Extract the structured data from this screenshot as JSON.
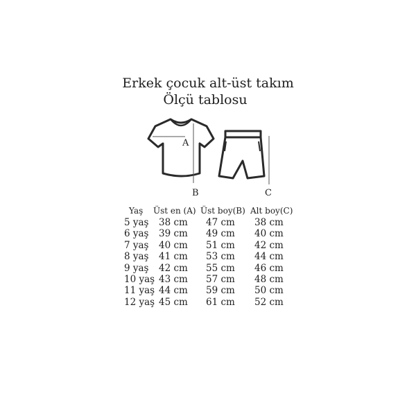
{
  "title_line1": "Erkek çocuk alt-üst takım",
  "title_line2": "Ölçü tablosu",
  "diagram": {
    "label_a": "A",
    "label_b": "B",
    "label_c": "C",
    "icons": [
      "t-shirt-icon",
      "shorts-icon"
    ]
  },
  "table": {
    "headers": [
      "Yaş",
      "Üst en (A)",
      "Üst boy(B)",
      "Alt boy(C)"
    ],
    "rows": [
      [
        "5 yaş",
        "38 cm",
        "47 cm",
        "38 cm"
      ],
      [
        "6 yaş",
        "39 cm",
        "49 cm",
        "40 cm"
      ],
      [
        "7 yaş",
        "40 cm",
        "51 cm",
        "42 cm"
      ],
      [
        "8 yaş",
        "41 cm",
        "53 cm",
        "44 cm"
      ],
      [
        "9 yaş",
        "42 cm",
        "55 cm",
        "46 cm"
      ],
      [
        "10 yaş",
        "43 cm",
        "57 cm",
        "48 cm"
      ],
      [
        "11 yaş",
        "44 cm",
        "59 cm",
        "50 cm"
      ],
      [
        "12 yaş",
        "45 cm",
        "61 cm",
        "52 cm"
      ]
    ]
  }
}
